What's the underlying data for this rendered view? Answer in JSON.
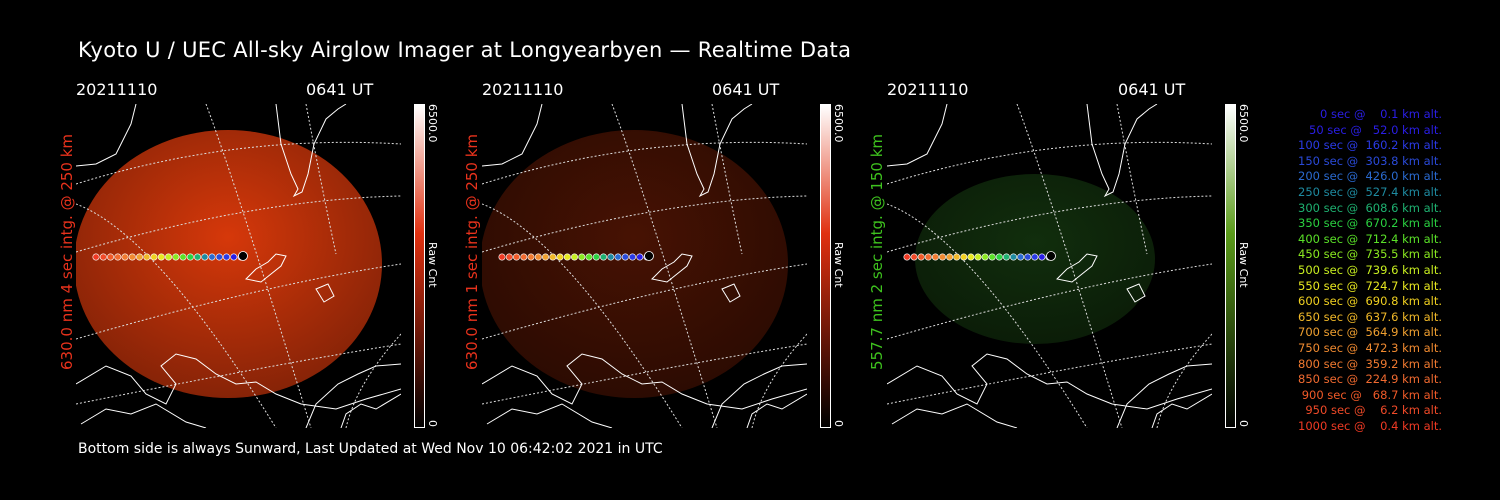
{
  "title": "Kyoto U / UEC All-sky Airglow Imager at Longyearbyen — Realtime Data",
  "footer": "Bottom side is always Sunward, Last Updated at Wed Nov 10 06:42:02 2021 in UTC",
  "panels": [
    {
      "date": "20211110",
      "time": "0641 UT",
      "label": "630.0 nm 4 sec intg. @ 250 km",
      "label_color": "#e8321c",
      "cbar_max": "6500.0",
      "cbar_min": "0",
      "cbar_title": "Raw Cnt",
      "cbar_color": "#e03010",
      "intensity": 0.85
    },
    {
      "date": "20211110",
      "time": "0641 UT",
      "label": "630.0 nm 1 sec intg. @ 250 km",
      "label_color": "#e8321c",
      "cbar_max": "6500.0",
      "cbar_min": "0",
      "cbar_title": "Raw Cnt",
      "cbar_color": "#e03010",
      "intensity": 0.28
    },
    {
      "date": "20211110",
      "time": "0641 UT",
      "label": "557.7 nm 2 sec intg. @ 150 km",
      "label_color": "#3ec21e",
      "cbar_max": "6500.0",
      "cbar_min": "0",
      "cbar_title": "Raw Cnt",
      "cbar_color": "#5a9a1a",
      "intensity": 0.35
    }
  ],
  "legend": [
    {
      "text": "0 sec @    0.1 km alt.",
      "color": "#2a1ee6"
    },
    {
      "text": "50 sec @   52.0 km alt.",
      "color": "#2a1ee6"
    },
    {
      "text": "100 sec @  160.2 km alt.",
      "color": "#2a3ae6"
    },
    {
      "text": "150 sec @  303.8 km alt.",
      "color": "#2a4ad8"
    },
    {
      "text": "200 sec @  426.0 km alt.",
      "color": "#2a6ad0"
    },
    {
      "text": "250 sec @  527.4 km alt.",
      "color": "#1e8aa0"
    },
    {
      "text": "300 sec @  608.6 km alt.",
      "color": "#1eb070"
    },
    {
      "text": "350 sec @  670.2 km alt.",
      "color": "#2ad040"
    },
    {
      "text": "400 sec @  712.4 km alt.",
      "color": "#5ae028"
    },
    {
      "text": "450 sec @  735.5 km alt.",
      "color": "#8ae820"
    },
    {
      "text": "500 sec @  739.6 km alt.",
      "color": "#c8ee20"
    },
    {
      "text": "550 sec @  724.7 km alt.",
      "color": "#e8e820"
    },
    {
      "text": "600 sec @  690.8 km alt.",
      "color": "#f0d020"
    },
    {
      "text": "650 sec @  637.6 km alt.",
      "color": "#f0b828"
    },
    {
      "text": "700 sec @  564.9 km alt.",
      "color": "#f0a030"
    },
    {
      "text": "750 sec @  472.3 km alt.",
      "color": "#f08a30"
    },
    {
      "text": "800 sec @  359.2 km alt.",
      "color": "#f07a30"
    },
    {
      "text": "850 sec @  224.9 km alt.",
      "color": "#f06a30"
    },
    {
      "text": "900 sec @   68.7 km alt.",
      "color": "#f05a28"
    },
    {
      "text": "950 sec @    6.2 km alt.",
      "color": "#f04a28"
    },
    {
      "text": "1000 sec @    0.4 km alt.",
      "color": "#f03a24"
    }
  ]
}
